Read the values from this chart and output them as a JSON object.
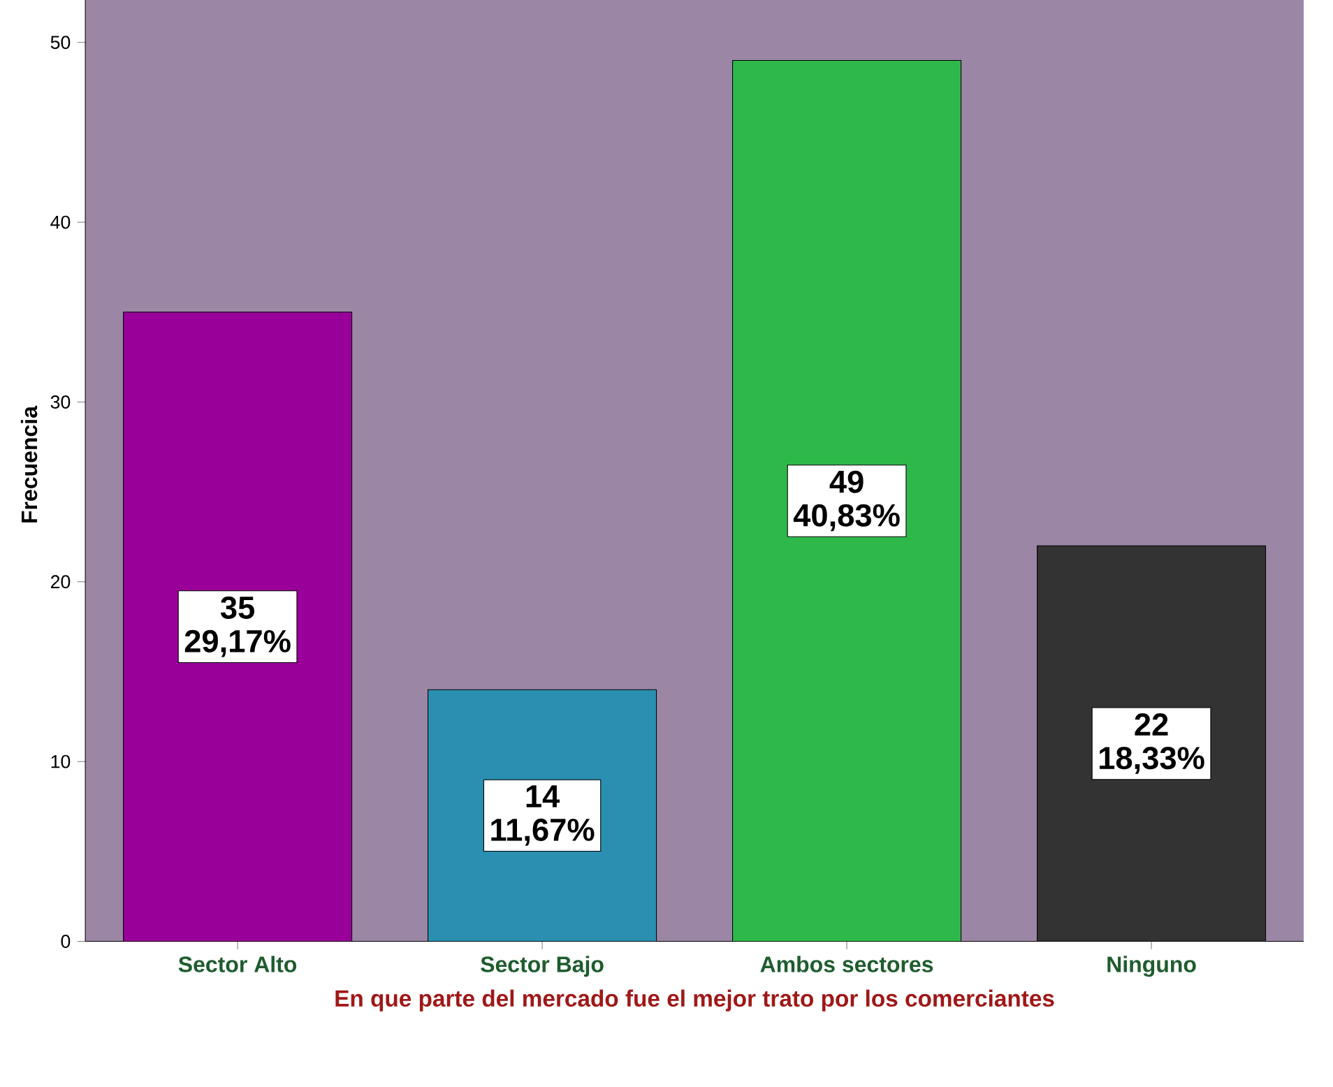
{
  "chart_data": {
    "type": "bar",
    "xlabel": "En que parte del mercado fue el mejor trato por los comerciantes",
    "ylabel": "Frecuencia",
    "categories": [
      "Sector Alto",
      "Sector Bajo",
      "Ambos sectores",
      "Ninguno"
    ],
    "values": [
      35,
      14,
      49,
      22
    ],
    "colors": [
      "#990099",
      "#2a8fb0",
      "#2fb84a",
      "#333333"
    ],
    "ylim": [
      0,
      53
    ],
    "yticks": [
      0,
      10,
      20,
      30,
      40,
      50
    ],
    "data_labels": true,
    "annotations": [
      "29,17%",
      "11,67%",
      "40,83%",
      "18,33%"
    ]
  }
}
